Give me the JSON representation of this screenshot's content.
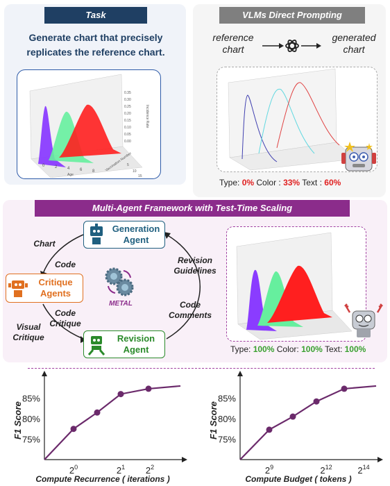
{
  "task": {
    "title": "Task",
    "description": "Generate chart that precisely replicates the reference chart.",
    "chart_labels": {
      "x": "Age",
      "y": "Vaccination Number",
      "z": "Incidence Rate"
    },
    "x_ticks": [
      "0",
      "2",
      "4",
      "6",
      "8"
    ],
    "y_ticks": [
      "5",
      "10",
      "15"
    ],
    "z_ticks": [
      "0.35",
      "0.30",
      "0.25",
      "0.20",
      "0.15",
      "0.10",
      "0.05",
      "0.00"
    ]
  },
  "vlm": {
    "title": "VLMs Direct Prompting",
    "input_label": "reference chart",
    "output_label": "generated chart",
    "scores": {
      "type_label": "Type:",
      "type_value": "0%",
      "color_label": "Color :",
      "color_value": "33%",
      "text_label": "Text :",
      "text_value": "60%"
    }
  },
  "metal": {
    "title": "Multi-Agent Framework with Test-Time Scaling",
    "logo_label": "METAL",
    "agents": {
      "generation": "Generation Agent",
      "critique": "Critique Agents",
      "revision": "Revision Agent"
    },
    "flow_labels": {
      "chart": "Chart",
      "code_top": "Code",
      "code_critique": "Code Critique",
      "visual_critique": "Visual Critique",
      "revision_guidelines": "Revision Guidelines",
      "code_comments": "Code Comments"
    },
    "scores": {
      "type_label": "Type:",
      "type_value": "100%",
      "color_label": "Color:",
      "color_value": "100%",
      "text_label": "Text:",
      "text_value": "100%"
    }
  },
  "colors": {
    "navy": "#1f3f63",
    "gray": "#7f7f7f",
    "purple": "#8b2c8b",
    "red": "#e02020",
    "green": "#3aa030",
    "curve": "#6b2a6b"
  },
  "chart_data": [
    {
      "type": "line",
      "title": "",
      "xlabel": "Compute Recurrence ( iterations )",
      "ylabel": "F1 Score",
      "x_ticks": [
        "2^0",
        "2^1",
        "2^2"
      ],
      "y_ticks": [
        "75%",
        "80%",
        "85%"
      ],
      "x": [
        0,
        1,
        2,
        3,
        4
      ],
      "values": [
        70,
        77.5,
        81.5,
        86,
        87.3
      ],
      "ylim": [
        70,
        90
      ],
      "series": [
        {
          "name": "F1 Score",
          "x": [
            0,
            1,
            2,
            3,
            4
          ],
          "values": [
            70,
            77.5,
            81.5,
            86,
            87.3
          ]
        }
      ]
    },
    {
      "type": "line",
      "title": "",
      "xlabel": "Compute Budget ( tokens )",
      "ylabel": "F1 Score",
      "x_ticks": [
        "2^9",
        "2^12",
        "2^14"
      ],
      "y_ticks": [
        "75%",
        "80%",
        "85%"
      ],
      "x": [
        0,
        1,
        2,
        3,
        4
      ],
      "values": [
        70,
        77.3,
        80.5,
        84.2,
        87.3
      ],
      "ylim": [
        70,
        90
      ],
      "series": [
        {
          "name": "F1 Score",
          "x": [
            0,
            1,
            2,
            3,
            4
          ],
          "values": [
            70,
            77.3,
            80.5,
            84.2,
            87.3
          ]
        }
      ]
    }
  ]
}
